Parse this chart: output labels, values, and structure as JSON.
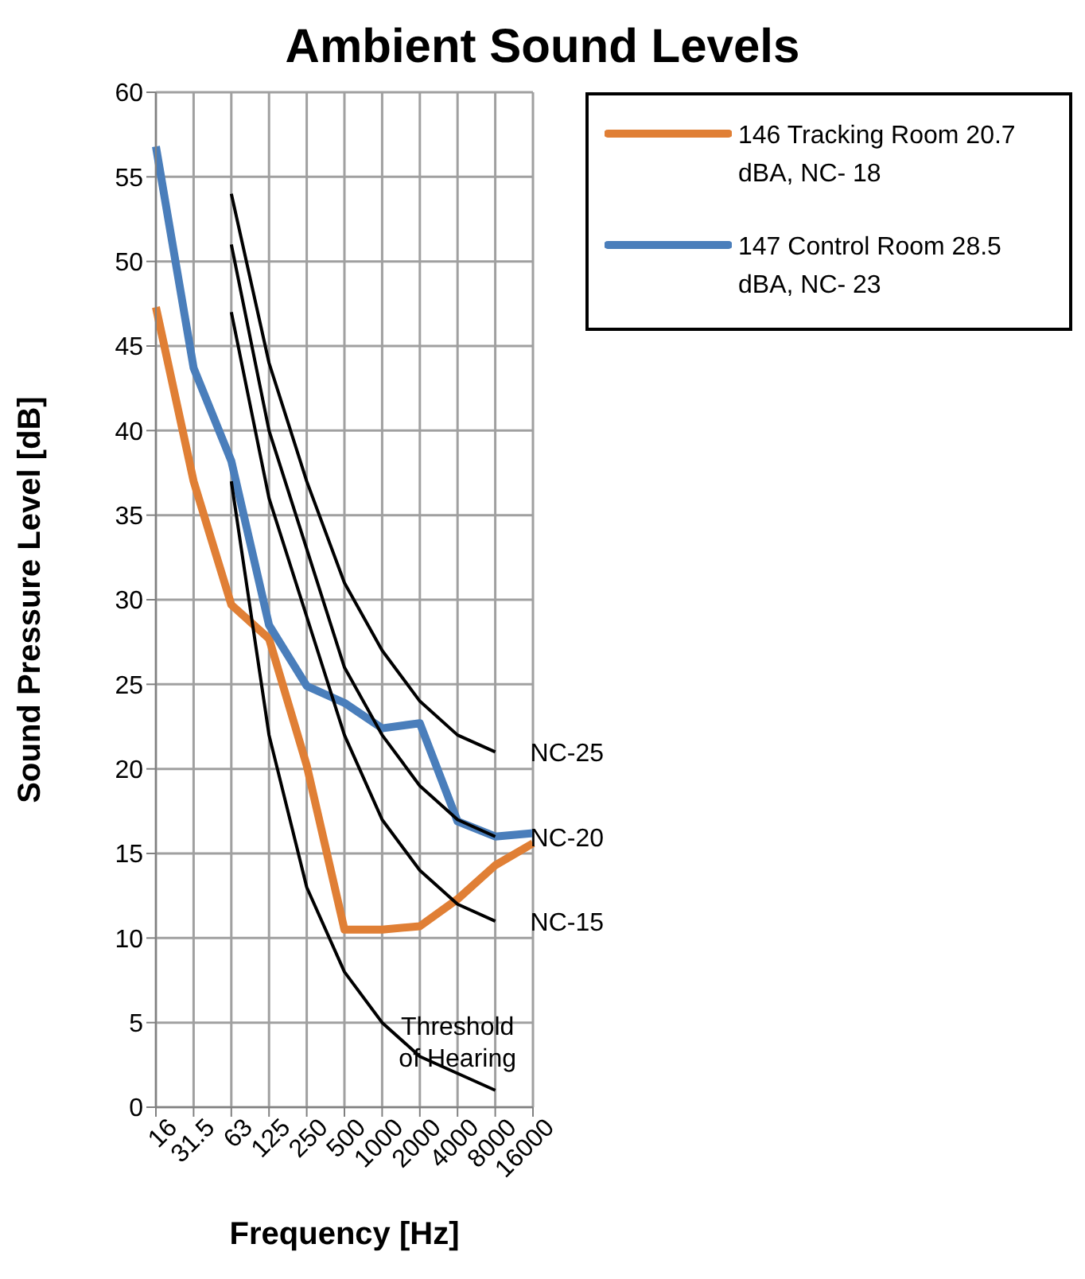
{
  "chart_data": {
    "type": "line",
    "title": "Ambient Sound Levels",
    "xlabel": "Frequency [Hz]",
    "ylabel": "Sound Pressure Level [dB]",
    "categories": [
      "16",
      "31.5",
      "63",
      "125",
      "250",
      "500",
      "1000",
      "2000",
      "4000",
      "8000",
      "16000"
    ],
    "series": [
      {
        "name": "146 Tracking Room 20.7 dBA, NC- 18",
        "color": "#e07f35",
        "values": [
          47.3,
          37,
          29.7,
          27.7,
          20.2,
          10.5,
          10.5,
          10.7,
          12.3,
          14.3,
          15.6
        ]
      },
      {
        "name": "147 Control Room 28.5 dBA, NC- 23",
        "color": "#4a7ebb",
        "values": [
          56.8,
          43.7,
          38.2,
          28.5,
          24.9,
          23.9,
          22.4,
          22.7,
          16.9,
          16.0,
          16.2
        ]
      },
      {
        "color": "#000000",
        "values": [
          null,
          null,
          54,
          44,
          37,
          31,
          27,
          24,
          22,
          21,
          null
        ]
      },
      {
        "color": "#000000",
        "values": [
          null,
          null,
          51,
          40,
          33,
          26,
          22,
          19,
          17,
          16,
          null
        ]
      },
      {
        "color": "#000000",
        "values": [
          null,
          null,
          47,
          36,
          29,
          22,
          17,
          14,
          12,
          11,
          null
        ]
      },
      {
        "color": "#000000",
        "values": [
          null,
          null,
          37,
          22,
          13,
          8,
          5,
          3,
          2,
          1,
          null
        ]
      }
    ],
    "annotations": [
      {
        "text": "NC-25",
        "x": "8000",
        "y": 21
      },
      {
        "text": "NC-20",
        "x": "8000",
        "y": 16
      },
      {
        "text": "NC-15",
        "x": "8000",
        "y": 11
      },
      {
        "text": "Threshold of Hearing",
        "x": "4000",
        "y": 2
      }
    ],
    "ylim": [
      0,
      60
    ],
    "yticks": [
      0,
      5,
      10,
      15,
      20,
      25,
      30,
      35,
      40,
      45,
      50,
      55,
      60
    ],
    "grid": true,
    "legend": "top right",
    "marker": "none",
    "line_style": "solid"
  }
}
